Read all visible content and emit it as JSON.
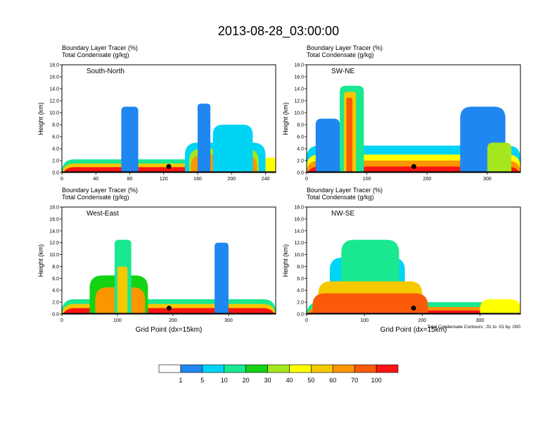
{
  "figure_title": "2013-08-28_03:00:00",
  "colors": {
    "levels": [
      "#ffffff",
      "#1e87f0",
      "#00d4f5",
      "#19e890",
      "#14d214",
      "#a6e61e",
      "#ffff00",
      "#f5c800",
      "#fa9600",
      "#fa5a0a",
      "#ff1414"
    ]
  },
  "chart_data": [
    {
      "type": "heatmap",
      "name": "south-north",
      "title_line1": "Boundary Layer Tracer   (%)",
      "title_line2": "Total Condensate   (g/kg)",
      "panel_label": "South-North",
      "ylabel": "Height (km)",
      "xlabel": "",
      "ylim": [
        0,
        18
      ],
      "xlim": [
        0,
        252
      ],
      "yticks": [
        "0.0",
        "2.0",
        "4.0",
        "6.0",
        "8.0",
        "10.0",
        "12.0",
        "14.0",
        "16.0",
        "18.0"
      ],
      "xticks": [
        0,
        40,
        80,
        120,
        160,
        200,
        240
      ],
      "marker": {
        "x": 126,
        "y": 1.0
      },
      "blobs": [
        {
          "x": 0,
          "x2": 252,
          "top": 2.2,
          "lvl": 3
        },
        {
          "x": 0,
          "x2": 252,
          "top": 1.5,
          "lvl": 7
        },
        {
          "x": 0,
          "x2": 252,
          "top": 0.9,
          "lvl": 10
        },
        {
          "x": 145,
          "x2": 240,
          "top": 5.0,
          "lvl": 2
        },
        {
          "x": 150,
          "x2": 232,
          "top": 4.0,
          "lvl": 5
        },
        {
          "x": 152,
          "x2": 230,
          "top": 3.0,
          "lvl": 8
        },
        {
          "x": 160,
          "x2": 175,
          "top": 11.5,
          "lvl": 1
        },
        {
          "x": 178,
          "x2": 225,
          "top": 8.0,
          "lvl": 2
        },
        {
          "x": 70,
          "x2": 90,
          "top": 11.0,
          "lvl": 1
        },
        {
          "x": 240,
          "x2": 252,
          "top": 2.5,
          "lvl": 6
        }
      ]
    },
    {
      "type": "heatmap",
      "name": "southwest-northeast",
      "title_line1": "Boundary Layer Tracer   (%)",
      "title_line2": "Total Condensate   (g/kg)",
      "panel_label": "SW-NE",
      "ylabel": "Height (km)",
      "xlabel": "",
      "ylim": [
        0,
        18
      ],
      "xlim": [
        0,
        355
      ],
      "yticks": [
        "0.0",
        "2.0",
        "4.0",
        "6.0",
        "8.0",
        "10.0",
        "12.0",
        "14.0",
        "16.0",
        "18.0"
      ],
      "xticks": [
        0,
        100,
        200,
        300
      ],
      "marker": {
        "x": 178,
        "y": 1.0
      },
      "blobs": [
        {
          "x": 0,
          "x2": 355,
          "top": 4.5,
          "lvl": 2
        },
        {
          "x": 0,
          "x2": 355,
          "top": 3.0,
          "lvl": 6
        },
        {
          "x": 0,
          "x2": 355,
          "top": 2.0,
          "lvl": 8
        },
        {
          "x": 0,
          "x2": 355,
          "top": 1.0,
          "lvl": 10
        },
        {
          "x": 15,
          "x2": 55,
          "top": 9.0,
          "lvl": 1
        },
        {
          "x": 55,
          "x2": 95,
          "top": 14.5,
          "lvl": 3
        },
        {
          "x": 62,
          "x2": 82,
          "top": 13.5,
          "lvl": 7
        },
        {
          "x": 66,
          "x2": 76,
          "top": 12.5,
          "lvl": 9
        },
        {
          "x": 255,
          "x2": 330,
          "top": 11.0,
          "lvl": 1
        },
        {
          "x": 300,
          "x2": 340,
          "top": 5.0,
          "lvl": 5
        }
      ]
    },
    {
      "type": "heatmap",
      "name": "west-east",
      "title_line1": "Boundary Layer Tracer   (%)",
      "title_line2": "Total Condensate   (g/kg)",
      "panel_label": "West-East",
      "ylabel": "Height (km)",
      "xlabel": "Grid Point (dx=15km)",
      "ylim": [
        0,
        18
      ],
      "xlim": [
        0,
        385
      ],
      "yticks": [
        "0.0",
        "2.0",
        "4.0",
        "6.0",
        "8.0",
        "10.0",
        "12.0",
        "14.0",
        "16.0",
        "18.0"
      ],
      "xticks": [
        0,
        100,
        200,
        300
      ],
      "marker": {
        "x": 193,
        "y": 1.0
      },
      "blobs": [
        {
          "x": 0,
          "x2": 385,
          "top": 2.5,
          "lvl": 3
        },
        {
          "x": 0,
          "x2": 385,
          "top": 1.7,
          "lvl": 7
        },
        {
          "x": 0,
          "x2": 385,
          "top": 1.0,
          "lvl": 10
        },
        {
          "x": 50,
          "x2": 155,
          "top": 6.5,
          "lvl": 4
        },
        {
          "x": 60,
          "x2": 150,
          "top": 4.5,
          "lvl": 8
        },
        {
          "x": 95,
          "x2": 125,
          "top": 12.5,
          "lvl": 3
        },
        {
          "x": 100,
          "x2": 118,
          "top": 8.0,
          "lvl": 7
        },
        {
          "x": 275,
          "x2": 300,
          "top": 12.0,
          "lvl": 1
        }
      ]
    },
    {
      "type": "heatmap",
      "name": "northwest-southeast",
      "title_line1": "Boundary Layer Tracer   (%)",
      "title_line2": "Total Condensate   (g/kg)",
      "panel_label": "NW-SE",
      "ylabel": "Height (km)",
      "xlabel": "Grid Point (dx=15km)",
      "ylim": [
        0,
        18
      ],
      "xlim": [
        0,
        370
      ],
      "yticks": [
        "0.0",
        "2.0",
        "4.0",
        "6.0",
        "8.0",
        "10.0",
        "12.0",
        "14.0",
        "16.0",
        "18.0"
      ],
      "xticks": [
        0,
        100,
        200,
        300
      ],
      "marker": {
        "x": 185,
        "y": 1.0
      },
      "note": "Total Condensate Contours: .01 to .01 by .000",
      "blobs": [
        {
          "x": 0,
          "x2": 370,
          "top": 2.0,
          "lvl": 3
        },
        {
          "x": 0,
          "x2": 370,
          "top": 1.2,
          "lvl": 8
        },
        {
          "x": 0,
          "x2": 370,
          "top": 0.6,
          "lvl": 10
        },
        {
          "x": 40,
          "x2": 170,
          "top": 9.5,
          "lvl": 2
        },
        {
          "x": 60,
          "x2": 160,
          "top": 12.5,
          "lvl": 3
        },
        {
          "x": 20,
          "x2": 200,
          "top": 5.5,
          "lvl": 7
        },
        {
          "x": 10,
          "x2": 210,
          "top": 3.5,
          "lvl": 9
        },
        {
          "x": 300,
          "x2": 370,
          "top": 2.5,
          "lvl": 6
        }
      ]
    }
  ],
  "colorbar": {
    "labels": [
      "1",
      "5",
      "10",
      "20",
      "30",
      "40",
      "50",
      "60",
      "70",
      "100"
    ]
  }
}
